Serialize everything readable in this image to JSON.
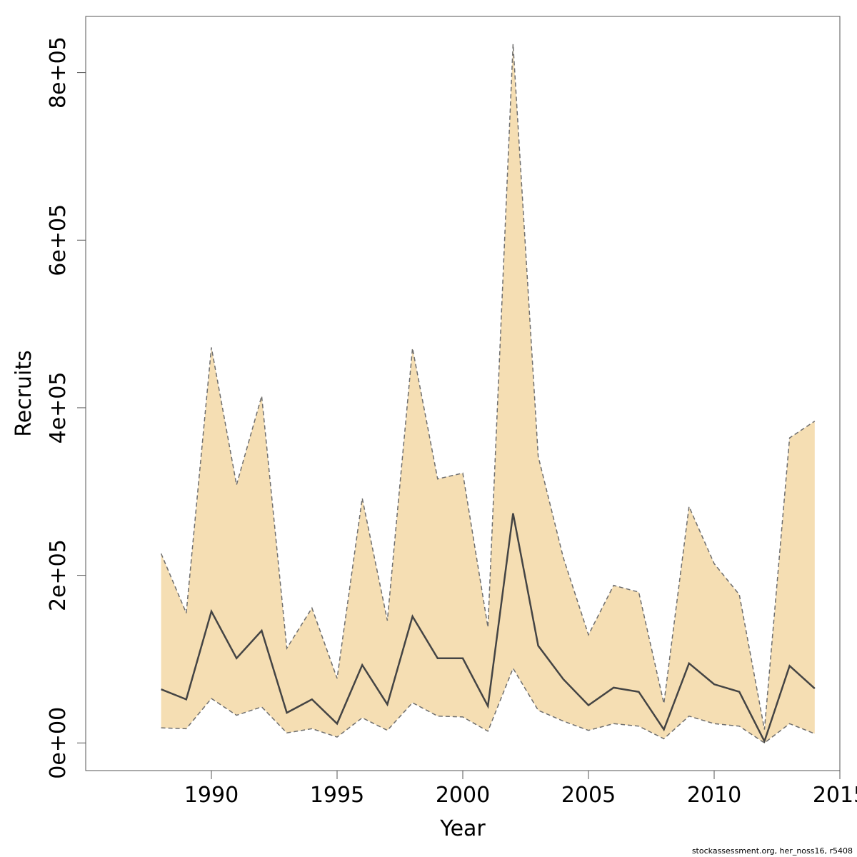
{
  "chart_data": {
    "type": "area",
    "xlabel": "Year",
    "ylabel": "Recruits",
    "xlim": [
      1985,
      2015
    ],
    "ylim": [
      -33000,
      867000
    ],
    "x_ticks": [
      1990,
      1995,
      2000,
      2005,
      2010,
      2015
    ],
    "x_tick_labels": [
      "1990",
      "1995",
      "2000",
      "2005",
      "2010",
      "2015"
    ],
    "y_ticks": [
      0,
      200000,
      400000,
      600000,
      800000
    ],
    "y_tick_labels": [
      "0e+00",
      "2e+05",
      "4e+05",
      "6e+05",
      "8e+05"
    ],
    "grid": false,
    "legend": "none",
    "x": [
      1988,
      1989,
      1990,
      1991,
      1992,
      1993,
      1994,
      1995,
      1996,
      1997,
      1998,
      1999,
      2000,
      2001,
      2002,
      2003,
      2004,
      2005,
      2006,
      2007,
      2008,
      2009,
      2010,
      2011,
      2012,
      2013,
      2014
    ],
    "series": [
      {
        "role": "estimate",
        "values": [
          64000,
          52000,
          157000,
          101000,
          134000,
          36000,
          52000,
          23000,
          93000,
          46000,
          151000,
          101000,
          101000,
          44000,
          274000,
          116000,
          76000,
          45000,
          66000,
          61000,
          16000,
          95000,
          70000,
          61000,
          2000,
          92000,
          65000
        ]
      },
      {
        "role": "upper_bound",
        "values": [
          226000,
          155000,
          472000,
          308000,
          414000,
          113000,
          161000,
          77000,
          292000,
          146000,
          471000,
          315000,
          322000,
          138000,
          834000,
          342000,
          221000,
          129000,
          188000,
          180000,
          47000,
          282000,
          214000,
          177000,
          16000,
          364000,
          384000
        ]
      },
      {
        "role": "lower_bound",
        "values": [
          18000,
          17000,
          53000,
          33000,
          43000,
          12000,
          17000,
          7000,
          30000,
          15000,
          48000,
          32000,
          31000,
          14000,
          89000,
          39000,
          26000,
          15000,
          23000,
          20000,
          5000,
          32000,
          23000,
          20000,
          0,
          23000,
          11000
        ]
      }
    ],
    "colors": {
      "band_fill": "#f5deb3",
      "band_edge": "#6e6e6e",
      "line": "#444444",
      "axis": "#555555"
    }
  },
  "footer": "stockassessment.org, her_noss16, r5408"
}
